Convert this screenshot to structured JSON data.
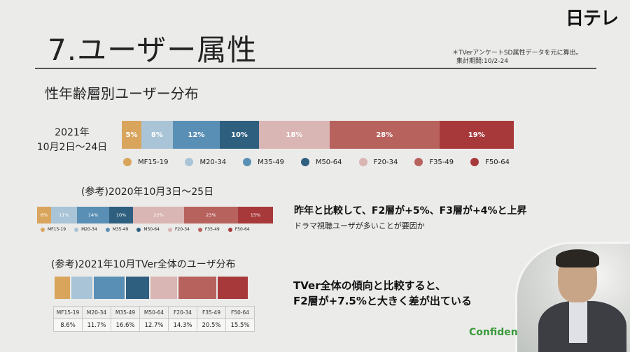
{
  "header": {
    "title": "7.ユーザー属性",
    "note_line1": "＊TVerアンケートSD属性データを元に算出。",
    "note_line2": "集計期間:10/2-24",
    "logo": "日テレ"
  },
  "subtitle": "性年齢層別ユーザー分布",
  "main_period": {
    "line1": "2021年",
    "line2": "10月2日〜24日"
  },
  "main_bar": [
    {
      "label": "5%",
      "value": 5,
      "color": "#d9a55c"
    },
    {
      "label": "8%",
      "value": 8,
      "color": "#a9c4d6"
    },
    {
      "label": "12%",
      "value": 12,
      "color": "#5a8fb5"
    },
    {
      "label": "10%",
      "value": 10,
      "color": "#2e5f7f"
    },
    {
      "label": "18%",
      "value": 18,
      "color": "#d9b5b3"
    },
    {
      "label": "28%",
      "value": 28,
      "color": "#b8625e"
    },
    {
      "label": "19%",
      "value": 19,
      "color": "#a8393a"
    }
  ],
  "legend": [
    "MF15-19",
    "M20-34",
    "M35-49",
    "M50-64",
    "F20-34",
    "F35-49",
    "F50-64"
  ],
  "ref_2020": {
    "title": "(参考)2020年10月3日〜25日",
    "bar": [
      {
        "label": "6%",
        "value": 6
      },
      {
        "label": "11%",
        "value": 11
      },
      {
        "label": "14%",
        "value": 14
      },
      {
        "label": "10%",
        "value": 10
      },
      {
        "label": "22%",
        "value": 22
      },
      {
        "label": "23%",
        "value": 23
      },
      {
        "label": "15%",
        "value": 15
      }
    ]
  },
  "ref_tver": {
    "title": "(参考)2021年10月TVer全体のユーザ分布",
    "bar": [
      8.6,
      11.7,
      16.6,
      12.7,
      14.3,
      20.5,
      15.5
    ],
    "table_headers": [
      "MF15-19",
      "M20-34",
      "M35-49",
      "M50-64",
      "F20-34",
      "F35-49",
      "F50-64"
    ],
    "table_values": [
      "8.6%",
      "11.7%",
      "16.6%",
      "12.7%",
      "14.3%",
      "20.5%",
      "15.5%"
    ]
  },
  "callouts": {
    "first": "昨年と比較して、F2層が+5%、F3層が+4%と上昇",
    "first_sub": "ドラマ視聴ユーザが多いことが要因か",
    "second_line1": "TVer全体の傾向と比較すると、",
    "second_line2": "F2層が+7.5%と大きく差が出ている"
  },
  "confidential": "Confiden"
}
